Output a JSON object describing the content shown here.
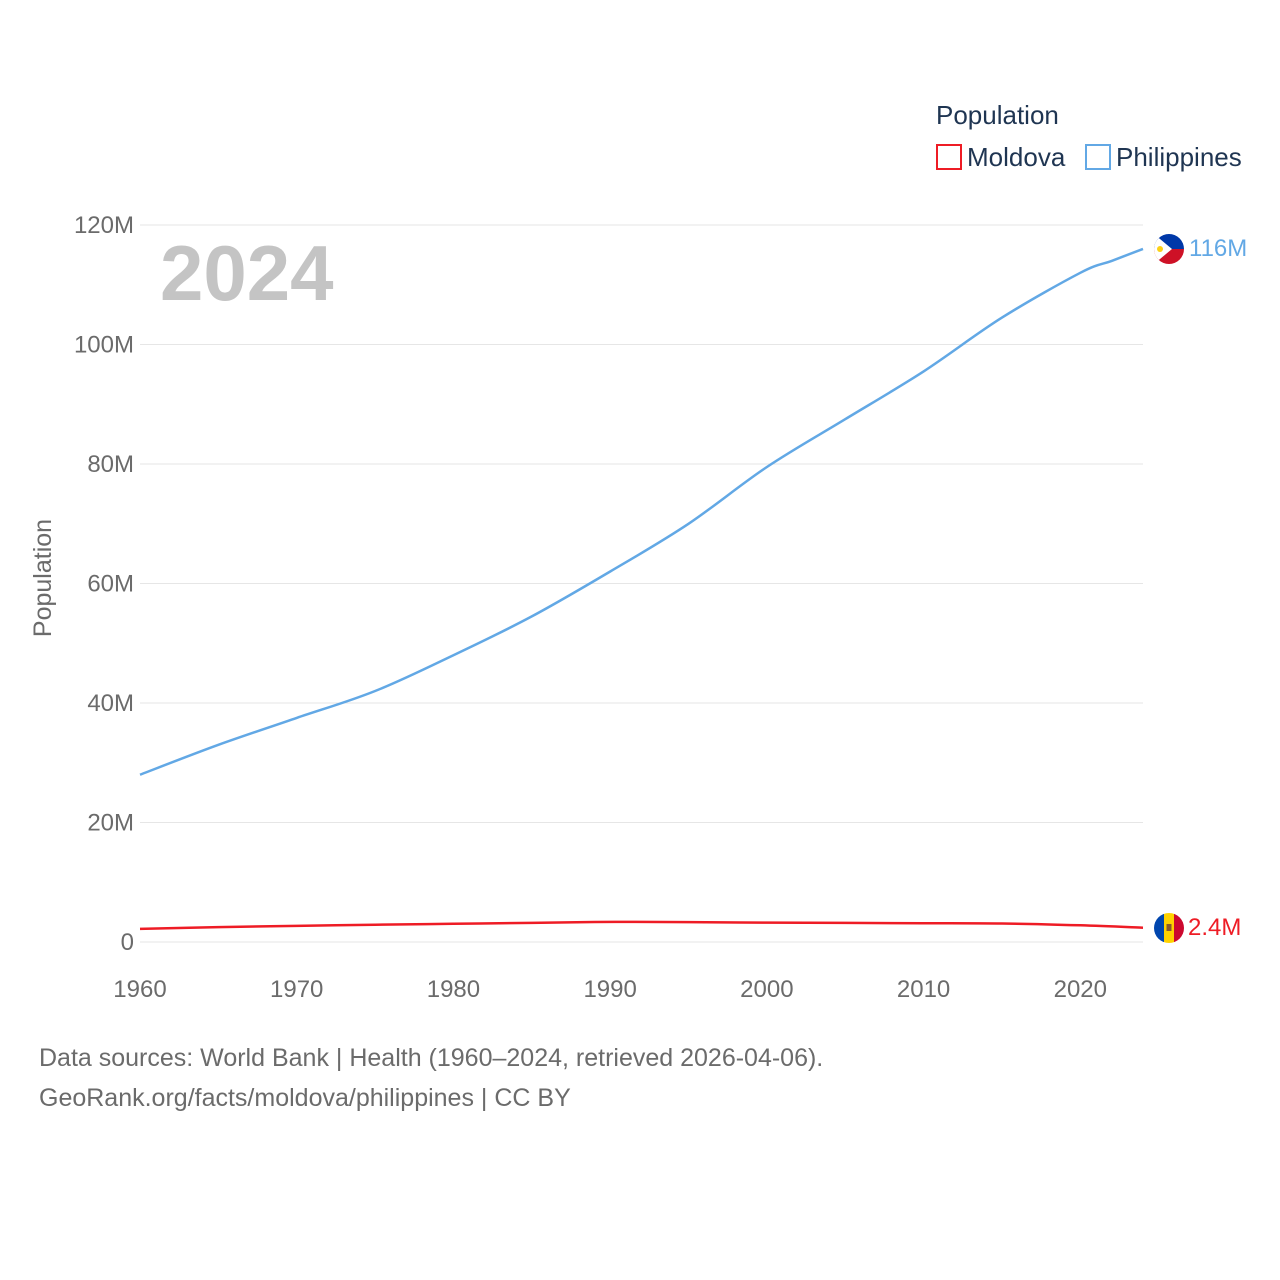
{
  "chart_data": {
    "type": "line",
    "title": "",
    "year_overlay": "2024",
    "ylabel": "Population",
    "xlabel": "",
    "ylim": [
      0,
      120000000
    ],
    "xlim": [
      1960,
      2024
    ],
    "y_ticks": [
      {
        "value": 0,
        "label": "0"
      },
      {
        "value": 20000000,
        "label": "20M"
      },
      {
        "value": 40000000,
        "label": "40M"
      },
      {
        "value": 60000000,
        "label": "60M"
      },
      {
        "value": 80000000,
        "label": "80M"
      },
      {
        "value": 100000000,
        "label": "100M"
      },
      {
        "value": 120000000,
        "label": "120M"
      }
    ],
    "x_ticks": [
      {
        "value": 1960,
        "label": "1960"
      },
      {
        "value": 1970,
        "label": "1970"
      },
      {
        "value": 1980,
        "label": "1980"
      },
      {
        "value": 1990,
        "label": "1990"
      },
      {
        "value": 2000,
        "label": "2000"
      },
      {
        "value": 2010,
        "label": "2010"
      },
      {
        "value": 2020,
        "label": "2020"
      }
    ],
    "legend": {
      "title": "Population",
      "position": "top-right"
    },
    "grid": true,
    "series": [
      {
        "name": "Moldova",
        "color": "#ee1c25",
        "end_label": "2.4M",
        "flag": "moldova-flag",
        "x": [
          1960,
          1965,
          1970,
          1975,
          1980,
          1985,
          1989,
          1991,
          1995,
          2000,
          2005,
          2010,
          2015,
          2020,
          2024
        ],
        "y": [
          2200000,
          2500000,
          2700000,
          2900000,
          3050000,
          3200000,
          3350000,
          3370000,
          3330000,
          3250000,
          3200000,
          3150000,
          3100000,
          2800000,
          2400000
        ]
      },
      {
        "name": "Philippines",
        "color": "#62a8e5",
        "end_label": "116M",
        "flag": "philippines-flag",
        "x": [
          1960,
          1965,
          1970,
          1975,
          1980,
          1985,
          1990,
          1995,
          2000,
          2005,
          2010,
          2015,
          2020,
          2022,
          2024
        ],
        "y": [
          28000000,
          33000000,
          37500000,
          42000000,
          48000000,
          54500000,
          62000000,
          70000000,
          79500000,
          87500000,
          95500000,
          104500000,
          112000000,
          114000000,
          116000000
        ]
      }
    ]
  },
  "footer": {
    "line1": "Data sources: World Bank | Health (1960–2024, retrieved 2026-04-06).",
    "line2": "GeoRank.org/facts/moldova/philippines | CC BY"
  }
}
